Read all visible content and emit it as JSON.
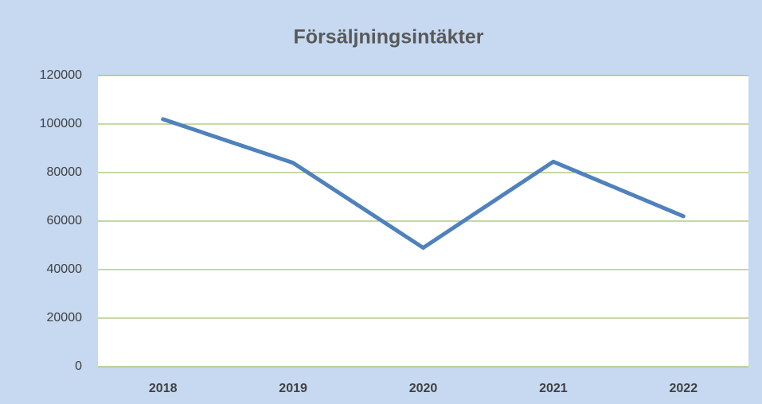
{
  "chart_data": {
    "type": "line",
    "title": "Försäljningsintäkter",
    "categories": [
      "2018",
      "2019",
      "2020",
      "2021",
      "2022"
    ],
    "series": [
      {
        "name": "Försäljningsintäkter",
        "color": "#4f81bd",
        "values": [
          102000,
          84000,
          49000,
          84500,
          62000
        ]
      }
    ],
    "ylim": [
      0,
      120000
    ],
    "yticks": [
      0,
      20000,
      40000,
      60000,
      80000,
      100000,
      120000
    ],
    "grid": true,
    "grid_color": "#8db346"
  }
}
